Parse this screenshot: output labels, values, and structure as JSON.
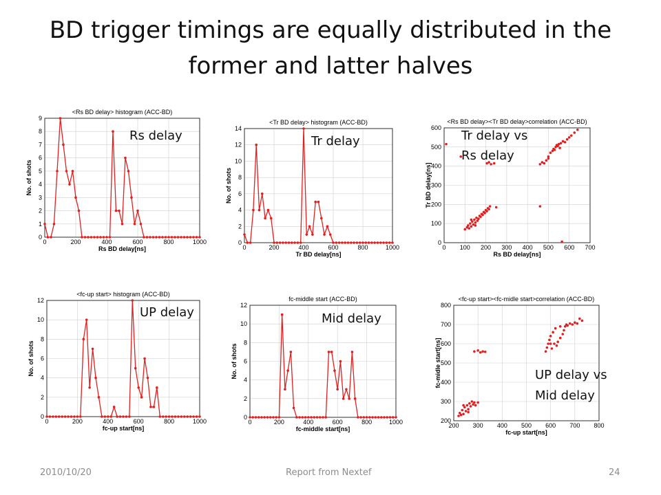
{
  "slide": {
    "title": "BD trigger timings are equally distributed in the former and latter halves",
    "footer_date": "2010/10/20",
    "footer_center": "Report from Nextef",
    "footer_page": "24"
  },
  "overlays": {
    "rs": "Rs delay",
    "tr": "Tr delay",
    "trrs_1": "Tr delay vs",
    "trrs_2": "Rs delay",
    "up": "UP delay",
    "mid": "Mid delay",
    "upmid_1": "UP delay vs",
    "upmid_2": "Mid delay"
  },
  "colors": {
    "series": "#e02020",
    "grid": "#cfcfcf",
    "axis": "#000000"
  },
  "chart_data": [
    {
      "id": "rs",
      "type": "line",
      "title": "<Rs BD delay> histogram (ACC-BD)",
      "xlabel": "Rs BD delay[ns]",
      "ylabel": "No. of shots",
      "xlim": [
        0,
        1000
      ],
      "ylim": [
        0,
        9
      ],
      "xticks": [
        0,
        200,
        400,
        600,
        800,
        1000
      ],
      "yticks": [
        0,
        1,
        2,
        3,
        4,
        5,
        6,
        7,
        8,
        9
      ],
      "grid": true,
      "x": [
        0,
        20,
        40,
        60,
        80,
        100,
        120,
        140,
        160,
        180,
        200,
        220,
        240,
        260,
        280,
        300,
        320,
        340,
        360,
        380,
        400,
        420,
        440,
        460,
        480,
        500,
        520,
        540,
        560,
        580,
        600,
        620,
        640,
        660,
        680,
        700,
        720,
        740,
        760,
        780,
        800,
        820,
        840,
        860,
        880,
        900,
        920,
        940,
        960,
        980,
        1000
      ],
      "y": [
        1,
        0,
        0,
        1,
        5,
        9,
        7,
        5,
        4,
        5,
        3,
        2,
        0,
        0,
        0,
        0,
        0,
        0,
        0,
        0,
        0,
        0,
        8,
        2,
        2,
        1,
        6,
        5,
        3,
        1,
        2,
        1,
        0,
        0,
        0,
        0,
        0,
        0,
        0,
        0,
        0,
        0,
        0,
        0,
        0,
        0,
        0,
        0,
        0,
        0,
        0
      ]
    },
    {
      "id": "tr",
      "type": "line",
      "title": "<Tr BD delay> histogram (ACC-BD)",
      "xlabel": "Tr BD delay[ns]",
      "ylabel": "No. of shots",
      "xlim": [
        0,
        1000
      ],
      "ylim": [
        0,
        14
      ],
      "xticks": [
        0,
        200,
        400,
        600,
        800,
        1000
      ],
      "yticks": [
        0,
        2,
        4,
        6,
        8,
        10,
        12,
        14
      ],
      "grid": true,
      "x": [
        0,
        20,
        40,
        60,
        80,
        100,
        120,
        140,
        160,
        180,
        200,
        220,
        240,
        260,
        280,
        300,
        320,
        340,
        360,
        380,
        400,
        420,
        440,
        460,
        480,
        500,
        520,
        540,
        560,
        580,
        600,
        620,
        640,
        660,
        680,
        700,
        720,
        740,
        760,
        780,
        800,
        820,
        840,
        860,
        880,
        900,
        920,
        940,
        960,
        980,
        1000
      ],
      "y": [
        1,
        0,
        0,
        4,
        12,
        4,
        6,
        3,
        4,
        3,
        0,
        0,
        0,
        0,
        0,
        0,
        0,
        0,
        0,
        0,
        14,
        1,
        2,
        1,
        5,
        5,
        3,
        1,
        2,
        1,
        0,
        0,
        0,
        0,
        0,
        0,
        0,
        0,
        0,
        0,
        0,
        0,
        0,
        0,
        0,
        0,
        0,
        0,
        0,
        0,
        0
      ]
    },
    {
      "id": "trrs",
      "type": "scatter",
      "title": "<Rs BD delay><Tr BD delay>correlation (ACC-BD)",
      "xlabel": "Rs BD delay[ns]",
      "ylabel": "Tr BD delay[ns]",
      "xlim": [
        0,
        700
      ],
      "ylim": [
        0,
        600
      ],
      "xticks": [
        0,
        100,
        200,
        300,
        400,
        500,
        600,
        700
      ],
      "yticks": [
        0,
        100,
        200,
        300,
        400,
        500,
        600
      ],
      "grid": true,
      "points": [
        [
          10,
          515
        ],
        [
          80,
          450
        ],
        [
          100,
          70
        ],
        [
          110,
          80
        ],
        [
          115,
          90
        ],
        [
          120,
          75
        ],
        [
          125,
          100
        ],
        [
          130,
          85
        ],
        [
          135,
          110
        ],
        [
          140,
          95
        ],
        [
          145,
          120
        ],
        [
          150,
          105
        ],
        [
          155,
          130
        ],
        [
          160,
          115
        ],
        [
          165,
          125
        ],
        [
          170,
          140
        ],
        [
          175,
          135
        ],
        [
          180,
          150
        ],
        [
          185,
          145
        ],
        [
          190,
          160
        ],
        [
          195,
          155
        ],
        [
          200,
          170
        ],
        [
          205,
          165
        ],
        [
          210,
          180
        ],
        [
          215,
          175
        ],
        [
          220,
          190
        ],
        [
          250,
          185
        ],
        [
          130,
          120
        ],
        [
          150,
          90
        ],
        [
          205,
          415
        ],
        [
          215,
          420
        ],
        [
          225,
          410
        ],
        [
          240,
          415
        ],
        [
          460,
          410
        ],
        [
          470,
          420
        ],
        [
          480,
          415
        ],
        [
          490,
          430
        ],
        [
          500,
          450
        ],
        [
          510,
          470
        ],
        [
          520,
          480
        ],
        [
          525,
          490
        ],
        [
          530,
          485
        ],
        [
          535,
          500
        ],
        [
          540,
          510
        ],
        [
          545,
          505
        ],
        [
          550,
          515
        ],
        [
          555,
          495
        ],
        [
          560,
          520
        ],
        [
          570,
          530
        ],
        [
          580,
          525
        ],
        [
          590,
          540
        ],
        [
          600,
          550
        ],
        [
          610,
          560
        ],
        [
          625,
          575
        ],
        [
          640,
          590
        ],
        [
          500,
          440
        ],
        [
          460,
          190
        ],
        [
          565,
          5
        ]
      ]
    },
    {
      "id": "up",
      "type": "line",
      "title": "<fc-up start> histogram (ACC-BD)",
      "xlabel": "fc-up start[ns]",
      "ylabel": "No. of shots",
      "xlim": [
        0,
        1000
      ],
      "ylim": [
        0,
        12
      ],
      "xticks": [
        0,
        200,
        400,
        600,
        800,
        1000
      ],
      "yticks": [
        0,
        2,
        4,
        6,
        8,
        10,
        12
      ],
      "grid": true,
      "x": [
        0,
        20,
        40,
        60,
        80,
        100,
        120,
        140,
        160,
        180,
        200,
        220,
        240,
        260,
        280,
        300,
        320,
        340,
        360,
        380,
        400,
        420,
        440,
        460,
        480,
        500,
        520,
        540,
        560,
        580,
        600,
        620,
        640,
        660,
        680,
        700,
        720,
        740,
        760,
        780,
        800,
        820,
        840,
        860,
        880,
        900,
        920,
        940,
        960,
        980,
        1000
      ],
      "y": [
        0,
        0,
        0,
        0,
        0,
        0,
        0,
        0,
        0,
        0,
        0,
        0,
        8,
        10,
        3,
        7,
        4,
        2,
        0,
        0,
        0,
        0,
        1,
        0,
        0,
        0,
        0,
        0,
        12,
        5,
        3,
        2,
        6,
        4,
        1,
        1,
        3,
        0,
        0,
        0,
        0,
        0,
        0,
        0,
        0,
        0,
        0,
        0,
        0,
        0,
        0
      ]
    },
    {
      "id": "mid",
      "type": "line",
      "title": "fc-middle start (ACC-BD)",
      "xlabel": "fc-middle start[ns]",
      "ylabel": "No. of shots",
      "xlim": [
        0,
        1000
      ],
      "ylim": [
        0,
        12
      ],
      "xticks": [
        0,
        200,
        400,
        600,
        800,
        1000
      ],
      "yticks": [
        0,
        2,
        4,
        6,
        8,
        10,
        12
      ],
      "grid": true,
      "x": [
        0,
        20,
        40,
        60,
        80,
        100,
        120,
        140,
        160,
        180,
        200,
        220,
        240,
        260,
        280,
        300,
        320,
        340,
        360,
        380,
        400,
        420,
        440,
        460,
        480,
        500,
        520,
        540,
        560,
        580,
        600,
        620,
        640,
        660,
        680,
        700,
        720,
        740,
        760,
        780,
        800,
        820,
        840,
        860,
        880,
        900,
        920,
        940,
        960,
        980,
        1000
      ],
      "y": [
        0,
        0,
        0,
        0,
        0,
        0,
        0,
        0,
        0,
        0,
        0,
        11,
        3,
        5,
        7,
        1,
        0,
        0,
        0,
        0,
        0,
        0,
        0,
        0,
        0,
        0,
        0,
        7,
        7,
        5,
        3,
        6,
        2,
        3,
        2,
        7,
        2,
        0,
        0,
        0,
        0,
        0,
        0,
        0,
        0,
        0,
        0,
        0,
        0,
        0,
        0
      ]
    },
    {
      "id": "upmid",
      "type": "scatter",
      "title": "<fc-up start><fc-midle start>correlation (ACC-BD)",
      "xlabel": "fc-up start[ns]",
      "ylabel": "fc-midle start[ns]",
      "xlim": [
        200,
        800
      ],
      "ylim": [
        200,
        800
      ],
      "xticks": [
        200,
        300,
        400,
        500,
        600,
        700,
        800
      ],
      "yticks": [
        200,
        300,
        400,
        500,
        600,
        700,
        800
      ],
      "grid": true,
      "points": [
        [
          220,
          225
        ],
        [
          225,
          240
        ],
        [
          230,
          230
        ],
        [
          235,
          255
        ],
        [
          240,
          235
        ],
        [
          245,
          270
        ],
        [
          250,
          250
        ],
        [
          255,
          280
        ],
        [
          260,
          260
        ],
        [
          265,
          290
        ],
        [
          270,
          275
        ],
        [
          275,
          300
        ],
        [
          280,
          285
        ],
        [
          285,
          295
        ],
        [
          290,
          280
        ],
        [
          300,
          295
        ],
        [
          240,
          280
        ],
        [
          260,
          245
        ],
        [
          285,
          560
        ],
        [
          300,
          565
        ],
        [
          310,
          555
        ],
        [
          320,
          560
        ],
        [
          330,
          558
        ],
        [
          580,
          560
        ],
        [
          585,
          580
        ],
        [
          590,
          600
        ],
        [
          595,
          620
        ],
        [
          600,
          640
        ],
        [
          605,
          575
        ],
        [
          610,
          660
        ],
        [
          615,
          600
        ],
        [
          620,
          680
        ],
        [
          625,
          590
        ],
        [
          630,
          610
        ],
        [
          640,
          630
        ],
        [
          650,
          650
        ],
        [
          655,
          670
        ],
        [
          660,
          690
        ],
        [
          665,
          700
        ],
        [
          670,
          695
        ],
        [
          680,
          705
        ],
        [
          690,
          700
        ],
        [
          700,
          710
        ],
        [
          710,
          705
        ],
        [
          720,
          730
        ],
        [
          730,
          720
        ],
        [
          600,
          600
        ],
        [
          640,
          690
        ]
      ]
    }
  ]
}
